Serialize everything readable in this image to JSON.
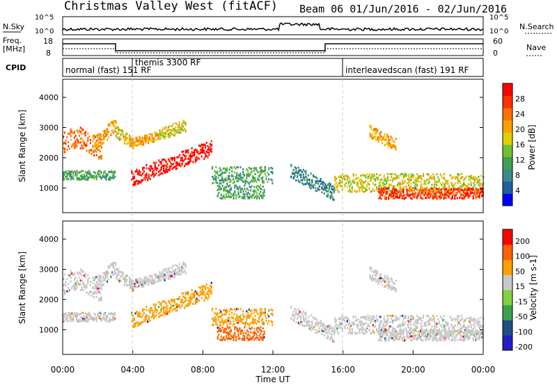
{
  "title": "Christmas Valley West (fitACF)",
  "beam_title": "Beam 06  01/Jun/2016 - 02/Jun/2016",
  "strip_labels": {
    "nsky": "N.Sky",
    "freq": "Freq.",
    "freq_unit": "[MHz]",
    "cpid": "CPID",
    "nsearch": "N.Search",
    "nave": "Nave"
  },
  "strip_ticks": {
    "nsky_top": "10^5",
    "nsky_bottom": "10^0",
    "nsearch_top": "10^5",
    "nsearch_bottom": "10^0",
    "freq_top": "18",
    "freq_bottom": "8",
    "nave_top": "60",
    "nave_bottom": "0"
  },
  "cpid_segments": [
    {
      "label": "normal (fast) 151 RF"
    },
    {
      "label": "themis 3300 RF"
    },
    {
      "label": "interleavedscan (fast) 191 RF"
    }
  ],
  "chart_data": [
    {
      "type": "heatmap",
      "name": "power",
      "ylabel": "Slant Range [km]",
      "ylim": [
        180,
        4600
      ],
      "yticks": [
        1000,
        2000,
        3000,
        4000
      ],
      "colorbar_label": "Power [dB]",
      "colorbar_ticks": [
        "4",
        "8",
        "12",
        "16",
        "20",
        "24",
        "28"
      ],
      "colors": [
        "#0000ff",
        "#2060a0",
        "#3a8a8a",
        "#40a050",
        "#70c030",
        "#e0d000",
        "#ffa000",
        "#ff7000",
        "#ff3000",
        "#ff0000"
      ]
    },
    {
      "type": "heatmap",
      "name": "velocity",
      "ylabel": "Slant Range [km]",
      "ylim": [
        180,
        4600
      ],
      "yticks": [
        1000,
        2000,
        3000,
        4000
      ],
      "colorbar_label": "Velocity [m s-1]",
      "colorbar_ticks": [
        "200",
        "100",
        "50",
        "15",
        "-15",
        "-50",
        "-100",
        "-200"
      ],
      "colors": [
        "#2020c0",
        "#205080",
        "#3aa050",
        "#80d040",
        "#c8c8c8",
        "#ffa000",
        "#ff6000",
        "#ff0000"
      ],
      "xlabel": "Time UT",
      "xticks": [
        "00:00",
        "04:00",
        "08:00",
        "12:00",
        "16:00",
        "20:00",
        "00:00"
      ]
    }
  ]
}
